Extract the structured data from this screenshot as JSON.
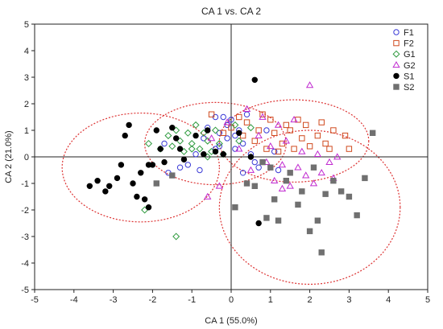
{
  "chart_data": {
    "type": "scatter",
    "title": "CA 1 vs. CA 2",
    "xlabel": "CA 1 (55.0%)",
    "ylabel": "CA 2 (21.0%)",
    "xlim": [
      -5,
      5
    ],
    "ylim": [
      -5,
      5
    ],
    "xticks": [
      "-5",
      "-4",
      "-3",
      "-2",
      "-1",
      "0",
      "1",
      "2",
      "3",
      "4",
      "5"
    ],
    "yticks": [
      "-5",
      "-4",
      "-3",
      "-2",
      "-1",
      "0",
      "1",
      "2",
      "3",
      "4",
      "5"
    ],
    "grid": false,
    "legend_position": "top-right",
    "zero_lines": true,
    "series": [
      {
        "name": "F1",
        "marker": "circle-open",
        "color": "#3a3ad6",
        "points": [
          [
            -1.7,
            0.5
          ],
          [
            -1.6,
            -0.6
          ],
          [
            -1.3,
            -0.4
          ],
          [
            -1.1,
            -0.3
          ],
          [
            -0.8,
            -0.5
          ],
          [
            -0.7,
            0.7
          ],
          [
            -0.6,
            1.1
          ],
          [
            -0.4,
            1.5
          ],
          [
            -0.4,
            0.3
          ],
          [
            -0.3,
            0.9
          ],
          [
            -0.3,
            0.4
          ],
          [
            -0.2,
            1.5
          ],
          [
            -0.1,
            1.2
          ],
          [
            -0.1,
            0.7
          ],
          [
            0.0,
            1.4
          ],
          [
            0.1,
            0.8
          ],
          [
            0.1,
            0.3
          ],
          [
            0.2,
            1.0
          ],
          [
            0.3,
            0.5
          ],
          [
            0.4,
            1.6
          ],
          [
            0.5,
            0.1
          ],
          [
            0.6,
            -0.2
          ],
          [
            0.7,
            -0.4
          ],
          [
            0.9,
            1.0
          ],
          [
            1.1,
            0.2
          ],
          [
            1.2,
            -0.5
          ],
          [
            0.3,
            -0.6
          ],
          [
            -0.9,
            0.1
          ]
        ]
      },
      {
        "name": "F2",
        "marker": "square-open",
        "color": "#d04a1e",
        "points": [
          [
            -0.5,
            1.6
          ],
          [
            -0.2,
            0.9
          ],
          [
            0.0,
            1.1
          ],
          [
            0.2,
            1.5
          ],
          [
            0.3,
            0.8
          ],
          [
            0.4,
            1.3
          ],
          [
            0.6,
            0.6
          ],
          [
            0.7,
            1.0
          ],
          [
            0.9,
            0.3
          ],
          [
            1.0,
            1.4
          ],
          [
            1.1,
            0.9
          ],
          [
            1.3,
            0.5
          ],
          [
            1.4,
            1.2
          ],
          [
            1.5,
            1.0
          ],
          [
            1.6,
            0.3
          ],
          [
            1.7,
            1.4
          ],
          [
            1.8,
            0.7
          ],
          [
            1.9,
            1.2
          ],
          [
            2.0,
            0.4
          ],
          [
            2.2,
            0.8
          ],
          [
            2.3,
            1.3
          ],
          [
            2.4,
            0.5
          ],
          [
            2.5,
            0.3
          ],
          [
            2.6,
            1.0
          ],
          [
            2.9,
            0.8
          ],
          [
            3.0,
            0.3
          ],
          [
            1.2,
            0.2
          ],
          [
            0.8,
            1.6
          ]
        ]
      },
      {
        "name": "G1",
        "marker": "diamond-open",
        "color": "#2e9a3e",
        "points": [
          [
            -2.2,
            -2.0
          ],
          [
            -2.1,
            0.5
          ],
          [
            -1.8,
            0.3
          ],
          [
            -1.6,
            0.8
          ],
          [
            -1.5,
            0.4
          ],
          [
            -1.4,
            1.0
          ],
          [
            -1.3,
            0.6
          ],
          [
            -1.2,
            0.2
          ],
          [
            -1.1,
            0.9
          ],
          [
            -1.0,
            0.5
          ],
          [
            -0.9,
            1.2
          ],
          [
            -0.8,
            0.3
          ],
          [
            -0.7,
            0.9
          ],
          [
            -0.6,
            0.6
          ],
          [
            -0.5,
            0.2
          ],
          [
            -0.4,
            1.0
          ],
          [
            -0.3,
            0.5
          ],
          [
            -0.2,
            0.1
          ],
          [
            0.1,
            1.2
          ],
          [
            0.2,
            0.6
          ],
          [
            0.5,
            1.1
          ],
          [
            -1.4,
            -3.0
          ],
          [
            -1.0,
            0.3
          ],
          [
            -0.6,
            0.0
          ]
        ]
      },
      {
        "name": "G2",
        "marker": "triangle-open",
        "color": "#c02ad0",
        "points": [
          [
            -0.5,
            0.7
          ],
          [
            -0.3,
            -1.1
          ],
          [
            -0.1,
            1.3
          ],
          [
            0.2,
            0.3
          ],
          [
            0.4,
            1.8
          ],
          [
            0.5,
            -0.5
          ],
          [
            0.7,
            0.8
          ],
          [
            0.8,
            1.5
          ],
          [
            0.9,
            -0.2
          ],
          [
            1.0,
            0.4
          ],
          [
            1.1,
            -0.9
          ],
          [
            1.2,
            1.2
          ],
          [
            1.3,
            -0.3
          ],
          [
            1.4,
            0.6
          ],
          [
            1.5,
            -1.1
          ],
          [
            1.6,
            1.4
          ],
          [
            1.7,
            -0.4
          ],
          [
            1.8,
            0.2
          ],
          [
            1.9,
            -0.7
          ],
          [
            2.0,
            2.7
          ],
          [
            2.1,
            -1.0
          ],
          [
            2.2,
            0.1
          ],
          [
            2.3,
            -0.6
          ],
          [
            2.5,
            -0.2
          ],
          [
            2.6,
            -0.8
          ],
          [
            2.7,
            0.0
          ],
          [
            1.3,
            -1.2
          ],
          [
            -0.6,
            -1.5
          ]
        ]
      },
      {
        "name": "S1",
        "marker": "circle-filled",
        "color": "#000000",
        "points": [
          [
            -3.6,
            -1.1
          ],
          [
            -3.4,
            -0.9
          ],
          [
            -3.2,
            -1.3
          ],
          [
            -3.1,
            -1.1
          ],
          [
            -2.9,
            -0.8
          ],
          [
            -2.7,
            0.8
          ],
          [
            -2.6,
            1.2
          ],
          [
            -2.5,
            -1.0
          ],
          [
            -2.4,
            -1.5
          ],
          [
            -2.3,
            -0.6
          ],
          [
            -2.2,
            -1.6
          ],
          [
            -2.1,
            -1.9
          ],
          [
            -2.0,
            -0.3
          ],
          [
            -1.9,
            1.0
          ],
          [
            -1.8,
            0.3
          ],
          [
            -1.7,
            -0.2
          ],
          [
            -1.5,
            1.1
          ],
          [
            -1.4,
            0.7
          ],
          [
            -1.3,
            0.3
          ],
          [
            -1.2,
            -0.1
          ],
          [
            -0.9,
            0.8
          ],
          [
            -0.7,
            0.1
          ],
          [
            -0.6,
            1.0
          ],
          [
            -0.4,
            0.2
          ],
          [
            -0.2,
            0.1
          ],
          [
            0.2,
            0.9
          ],
          [
            0.5,
            0.0
          ],
          [
            0.6,
            2.9
          ],
          [
            0.7,
            -2.5
          ],
          [
            -2.1,
            -0.3
          ],
          [
            -2.8,
            -0.3
          ]
        ]
      },
      {
        "name": "S2",
        "marker": "square-filled",
        "color": "#707070",
        "points": [
          [
            -1.9,
            -1.0
          ],
          [
            -1.5,
            -0.7
          ],
          [
            0.1,
            -1.9
          ],
          [
            0.4,
            -1.0
          ],
          [
            0.6,
            -1.1
          ],
          [
            0.8,
            -0.2
          ],
          [
            0.9,
            -2.3
          ],
          [
            1.0,
            -0.4
          ],
          [
            1.1,
            -1.6
          ],
          [
            1.2,
            -2.4
          ],
          [
            1.4,
            -0.9
          ],
          [
            1.5,
            -0.6
          ],
          [
            1.7,
            -1.8
          ],
          [
            1.8,
            -1.3
          ],
          [
            2.0,
            -2.8
          ],
          [
            2.2,
            -2.4
          ],
          [
            2.3,
            -3.6
          ],
          [
            2.4,
            -1.4
          ],
          [
            2.6,
            -0.9
          ],
          [
            2.8,
            -1.3
          ],
          [
            3.0,
            -1.5
          ],
          [
            3.2,
            -2.2
          ],
          [
            3.4,
            -0.8
          ],
          [
            3.6,
            0.9
          ],
          [
            2.1,
            -0.4
          ]
        ]
      }
    ],
    "ellipses": [
      {
        "cx": -2.3,
        "cy": -0.4,
        "rx": 2.0,
        "ry": 2.05,
        "stroke": "#d33"
      },
      {
        "cx": -0.4,
        "cy": 0.5,
        "rx": 1.8,
        "ry": 1.55,
        "stroke": "#d33"
      },
      {
        "cx": 1.6,
        "cy": 0.6,
        "rx": 1.9,
        "ry": 1.55,
        "stroke": "#d33"
      },
      {
        "cx": 2.0,
        "cy": -1.9,
        "rx": 2.3,
        "ry": 2.9,
        "stroke": "#d33"
      }
    ]
  }
}
